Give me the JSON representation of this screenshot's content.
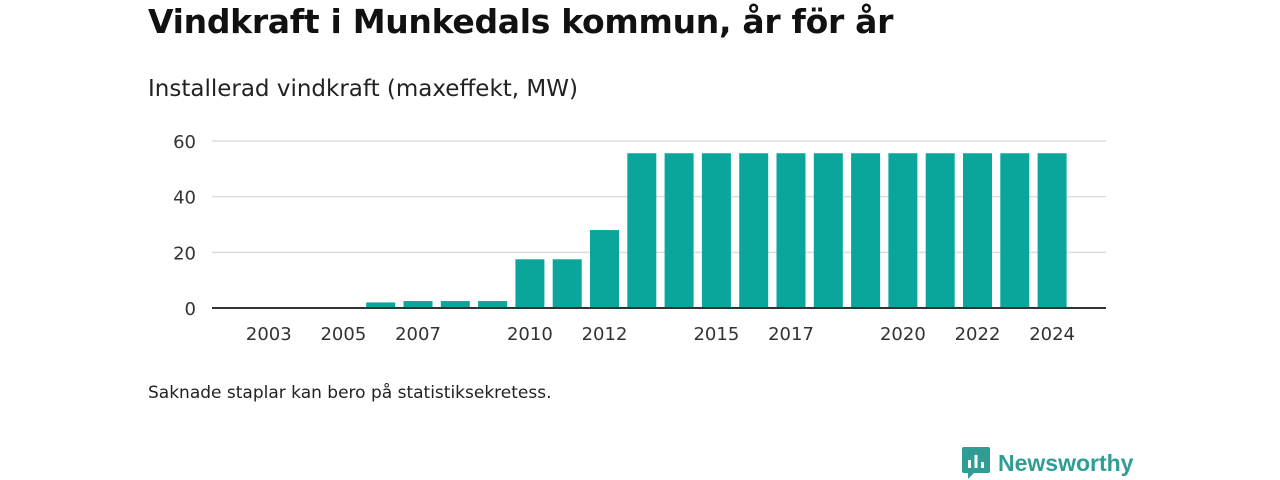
{
  "title": "Vindkraft i Munkedals kommun, år för år",
  "subtitle": "Installerad vindkraft (maxeffekt, MW)",
  "note": "Saknade staplar kan bero på statistiksekretess.",
  "brand": {
    "name": "Newsworthy",
    "icon": "newsworthy-logo-icon"
  },
  "colors": {
    "bar": "#0aa69b",
    "grid": "#dddddd",
    "axis": "#333333",
    "brand": "#2f9d93"
  },
  "chart_data": {
    "type": "bar",
    "title": "Installerad vindkraft (maxeffekt, MW)",
    "xlabel": "",
    "ylabel": "",
    "categories": [
      "2002",
      "2003",
      "2004",
      "2005",
      "2006",
      "2007",
      "2008",
      "2009",
      "2010",
      "2011",
      "2012",
      "2013",
      "2014",
      "2015",
      "2016",
      "2017",
      "2018",
      "2019",
      "2020",
      "2021",
      "2022",
      "2023",
      "2024"
    ],
    "values": [
      0,
      0,
      0,
      0,
      2,
      2.5,
      2.5,
      2.5,
      17.5,
      17.5,
      28,
      55.6,
      55.6,
      55.6,
      55.6,
      55.6,
      55.6,
      55.6,
      55.6,
      55.6,
      55.6,
      55.6,
      55.6
    ],
    "x_tick_labels": [
      "2003",
      "2005",
      "2007",
      "2010",
      "2012",
      "2015",
      "2017",
      "2020",
      "2022",
      "2024"
    ],
    "y_ticks": [
      0,
      20,
      40,
      60
    ],
    "ylim": [
      0,
      60
    ],
    "grid": true,
    "legend": "none"
  }
}
